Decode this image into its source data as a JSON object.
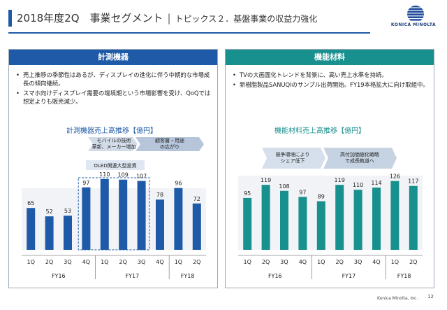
{
  "header": {
    "title": "2018年度2Q　事業セグメント",
    "separator": "|",
    "topic": "トピックス２．基盤事業の収益力強化"
  },
  "logo": {
    "name": "konica-minolta-globe-logo",
    "text": "KONICA MINOLTA"
  },
  "left_panel": {
    "heading": "計測機器",
    "bullets": [
      "売上推移の季節性はあるが、ディスプレイの進化に伴う中期的な市場成長の傾向継続。",
      "スマホ向けディスプレイ需要の端境期という市場影響を受け、QoQでは想定よりも販売減少。"
    ],
    "chart_title": "計測機器売上高推移【億円】",
    "callouts": [
      "モバイルの技術革新、メーカー増加",
      "顧客層・用途の広がり",
      "OLED関連大型投資"
    ]
  },
  "right_panel": {
    "heading": "機能材料",
    "bullets": [
      "TVの大画面化トレンドを背景に、高い売上水準を持続。",
      "新樹脂製品SANUQIのサンプル出荷開始。FY19本格拡大に向け取組中。"
    ],
    "chart_title": "機能材料売上高推移【億円】",
    "callouts": [
      "競争環境により シェア低下",
      "高付加価値化戦略 で成長軌道へ"
    ]
  },
  "chart_data": [
    {
      "type": "bar",
      "title": "計測機器売上高推移【億円】",
      "categories": [
        "1Q",
        "2Q",
        "3Q",
        "4Q",
        "1Q",
        "2Q",
        "3Q",
        "4Q",
        "1Q",
        "2Q"
      ],
      "groups": [
        "FY16",
        "FY17",
        "FY18"
      ],
      "values": [
        65,
        52,
        53,
        97,
        110,
        109,
        107,
        78,
        96,
        72
      ],
      "highlighted": [
        3,
        4,
        5,
        6
      ],
      "colors": {
        "bar": "#1e5aa8",
        "highlight_border": "#1e5aa8"
      }
    },
    {
      "type": "bar",
      "title": "機能材料売上高推移【億円】",
      "categories": [
        "1Q",
        "2Q",
        "3Q",
        "4Q",
        "1Q",
        "2Q",
        "3Q",
        "4Q",
        "1Q",
        "2Q"
      ],
      "groups": [
        "FY16",
        "FY17",
        "FY18"
      ],
      "values": [
        95,
        119,
        108,
        97,
        89,
        119,
        110,
        114,
        126,
        117
      ],
      "colors": {
        "bar": "#18908e"
      }
    }
  ],
  "footer": {
    "company": "Konica Minolta, Inc.",
    "page": "12"
  }
}
